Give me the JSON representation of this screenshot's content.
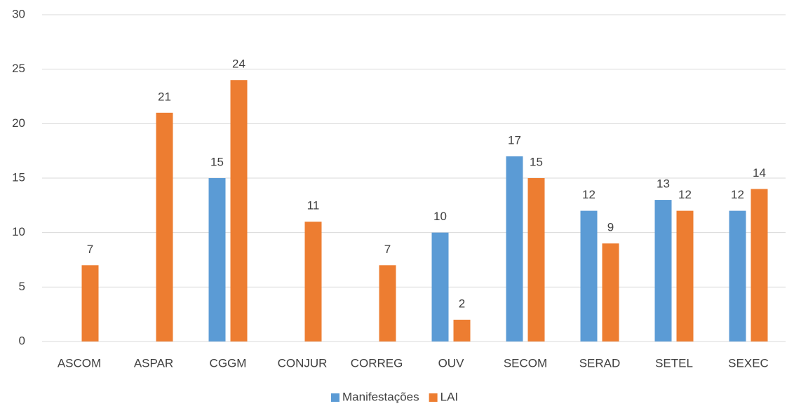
{
  "chart_data": {
    "type": "bar",
    "categories": [
      "ASCOM",
      "ASPAR",
      "CGGM",
      "CONJUR",
      "CORREG",
      "OUV",
      "SECOM",
      "SERAD",
      "SETEL",
      "SEXEC"
    ],
    "series": [
      {
        "name": "Manifestações",
        "color": "#5b9bd5",
        "values": [
          null,
          null,
          15,
          null,
          null,
          10,
          17,
          12,
          13,
          12
        ]
      },
      {
        "name": "LAI",
        "color": "#ed7d31",
        "values": [
          7,
          21,
          24,
          11,
          7,
          2,
          15,
          9,
          12,
          14
        ]
      }
    ],
    "ylim": [
      0,
      30
    ],
    "yticks": [
      0,
      5,
      10,
      15,
      20,
      25,
      30
    ],
    "grid": true,
    "legend": "bottom"
  }
}
